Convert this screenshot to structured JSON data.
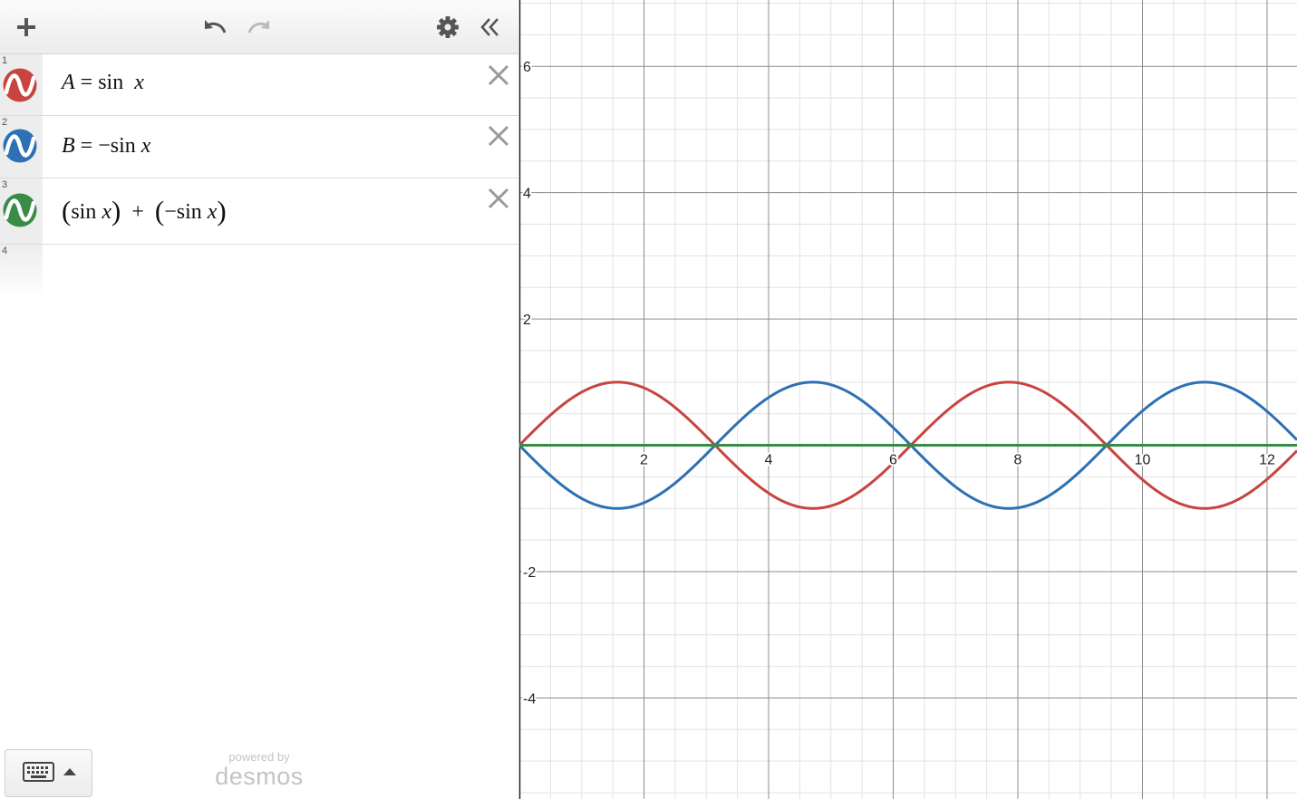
{
  "toolbar": {
    "add_icon": "plus-icon",
    "undo_icon": "undo-icon",
    "redo_icon": "redo-icon",
    "settings_icon": "gear-icon",
    "collapse_icon": "double-chevron-left-icon"
  },
  "expressions": [
    {
      "index": "1",
      "color": "#c74440",
      "parts": {
        "lhs": "A",
        "eq": " = ",
        "fn": "sin",
        "var": "x"
      }
    },
    {
      "index": "2",
      "color": "#2d70b3",
      "parts": {
        "lhs": "B",
        "eq": " = ",
        "neg": "−",
        "fn": "sin",
        "var": "x"
      }
    },
    {
      "index": "3",
      "color": "#388c46",
      "parts": {
        "fn1": "sin",
        "var1": "x",
        "plus": "+",
        "neg": "−",
        "fn2": "sin",
        "var2": "x"
      }
    }
  ],
  "empty_row_index": "4",
  "footer": {
    "powered_by": "powered by",
    "brand": "desmos",
    "keyboard_icon": "keyboard-icon"
  },
  "graph": {
    "x_ticks": [
      "2",
      "4",
      "6",
      "8",
      "10",
      "12"
    ],
    "y_ticks": [
      "6",
      "4",
      "2",
      "-2",
      "-4"
    ],
    "x_range": [
      0,
      12.48
    ],
    "y_range": [
      -5.6,
      7.05
    ]
  },
  "chart_data": {
    "type": "line",
    "title": "",
    "xlabel": "",
    "ylabel": "",
    "xlim": [
      0,
      12.48
    ],
    "ylim": [
      -5.6,
      7.05
    ],
    "grid": true,
    "series": [
      {
        "name": "A = sin x",
        "function": "sin(x)",
        "color": "#c74440"
      },
      {
        "name": "B = −sin x",
        "function": "-sin(x)",
        "color": "#2d70b3"
      },
      {
        "name": "(sin x) + (−sin x)",
        "function": "0",
        "color": "#388c46"
      }
    ]
  }
}
